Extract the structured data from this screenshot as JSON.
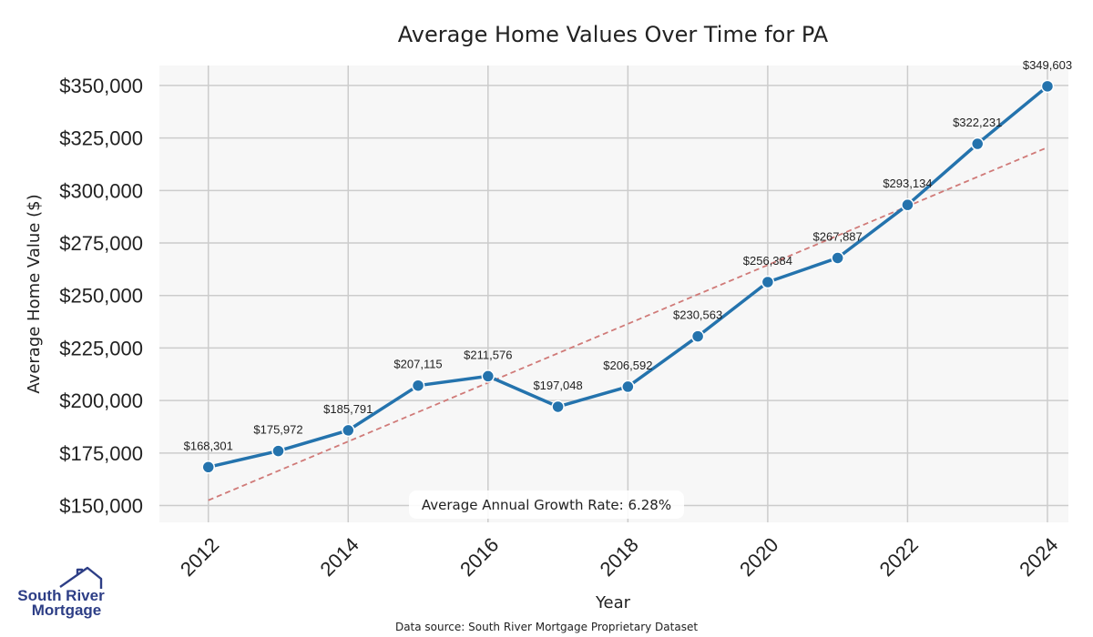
{
  "chart_data": {
    "type": "line",
    "title": "Average Home Values Over Time for PA",
    "xlabel": "Year",
    "ylabel": "Average Home Value ($)",
    "x": [
      2012,
      2013,
      2014,
      2015,
      2016,
      2017,
      2018,
      2019,
      2020,
      2021,
      2022,
      2023,
      2024
    ],
    "series": [
      {
        "values": [
          168301,
          175972,
          185791,
          207115,
          211576,
          197048,
          206592,
          230563,
          256384,
          267887,
          293134,
          322231,
          349603
        ],
        "labels": [
          "$168,301",
          "$175,972",
          "$185,791",
          "$207,115",
          "$211,576",
          "$197,048",
          "$206,592",
          "$230,563",
          "$256,384",
          "$267,887",
          "$293,134",
          "$322,231",
          "$349,603"
        ],
        "color": "#2473ad"
      }
    ],
    "trendline": {
      "start": [
        2012,
        152500
      ],
      "end": [
        2024,
        320500
      ],
      "color": "#d07a78",
      "style": "dashed"
    },
    "xlim": [
      2011.3,
      2024.3
    ],
    "ylim": [
      142000,
      359500
    ],
    "xticks": [
      2012,
      2014,
      2016,
      2018,
      2020,
      2022,
      2024
    ],
    "xtick_labels": [
      "2012",
      "2014",
      "2016",
      "2018",
      "2020",
      "2022",
      "2024"
    ],
    "yticks": [
      150000,
      175000,
      200000,
      225000,
      250000,
      275000,
      300000,
      325000,
      350000
    ],
    "ytick_labels": [
      "$150,000",
      "$175,000",
      "$200,000",
      "$225,000",
      "$250,000",
      "$275,000",
      "$300,000",
      "$325,000",
      "$350,000"
    ],
    "grid": true,
    "annotation": "Average Annual Growth Rate: 6.28%",
    "background": "#f7f7f7",
    "grid_color": "#cccccc"
  },
  "logo": {
    "line1": "South River",
    "line2": "Mortgage",
    "color": "#2d3e86"
  },
  "footer": {
    "source": "Data source: South River Mortgage Proprietary Dataset"
  }
}
